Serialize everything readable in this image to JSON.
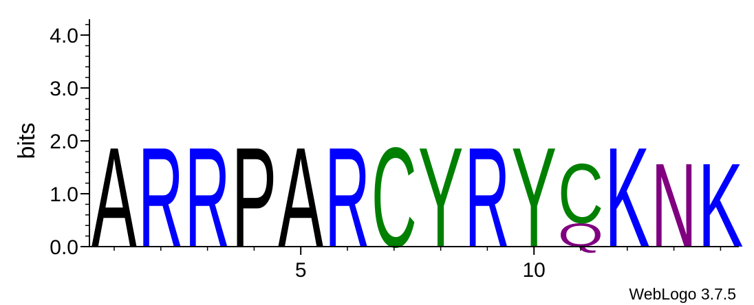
{
  "chart_data": {
    "type": "sequence-logo",
    "ylabel": "bits",
    "ylim": [
      0,
      4.3
    ],
    "y_ticks": [
      {
        "value": 0,
        "label": "0.0"
      },
      {
        "value": 1,
        "label": "1.0"
      },
      {
        "value": 2,
        "label": "2.0"
      },
      {
        "value": 3,
        "label": "3.0"
      },
      {
        "value": 4,
        "label": "4.0"
      }
    ],
    "y_minor_step": 0.2,
    "x_positions": 14,
    "x_ticks": [
      {
        "value": 5,
        "label": "5"
      },
      {
        "value": 10,
        "label": "10"
      }
    ],
    "columns": [
      {
        "position": 1,
        "stack": [
          {
            "letter": "A",
            "bits": 1.93,
            "color": "#000000"
          }
        ]
      },
      {
        "position": 2,
        "stack": [
          {
            "letter": "R",
            "bits": 1.93,
            "color": "#0000ff"
          }
        ]
      },
      {
        "position": 3,
        "stack": [
          {
            "letter": "R",
            "bits": 1.93,
            "color": "#0000ff"
          }
        ]
      },
      {
        "position": 4,
        "stack": [
          {
            "letter": "P",
            "bits": 1.93,
            "color": "#000000"
          }
        ]
      },
      {
        "position": 5,
        "stack": [
          {
            "letter": "A",
            "bits": 1.93,
            "color": "#000000"
          }
        ]
      },
      {
        "position": 6,
        "stack": [
          {
            "letter": "R",
            "bits": 1.93,
            "color": "#0000ff"
          }
        ]
      },
      {
        "position": 7,
        "stack": [
          {
            "letter": "C",
            "bits": 1.93,
            "color": "#008000"
          }
        ]
      },
      {
        "position": 8,
        "stack": [
          {
            "letter": "Y",
            "bits": 1.93,
            "color": "#008000"
          }
        ]
      },
      {
        "position": 9,
        "stack": [
          {
            "letter": "R",
            "bits": 1.93,
            "color": "#0000ff"
          }
        ]
      },
      {
        "position": 10,
        "stack": [
          {
            "letter": "Y",
            "bits": 1.93,
            "color": "#008000"
          }
        ]
      },
      {
        "position": 11,
        "stack": [
          {
            "letter": "Q",
            "bits": 0.45,
            "color": "#800080"
          },
          {
            "letter": "C",
            "bits": 1.15,
            "color": "#008000"
          }
        ]
      },
      {
        "position": 12,
        "stack": [
          {
            "letter": "K",
            "bits": 1.93,
            "color": "#0000ff"
          }
        ]
      },
      {
        "position": 13,
        "stack": [
          {
            "letter": "N",
            "bits": 1.62,
            "color": "#800080"
          }
        ]
      },
      {
        "position": 14,
        "stack": [
          {
            "letter": "K",
            "bits": 1.62,
            "color": "#0000ff"
          }
        ]
      }
    ]
  },
  "footer": {
    "credit": "WebLogo 3.7.5"
  }
}
